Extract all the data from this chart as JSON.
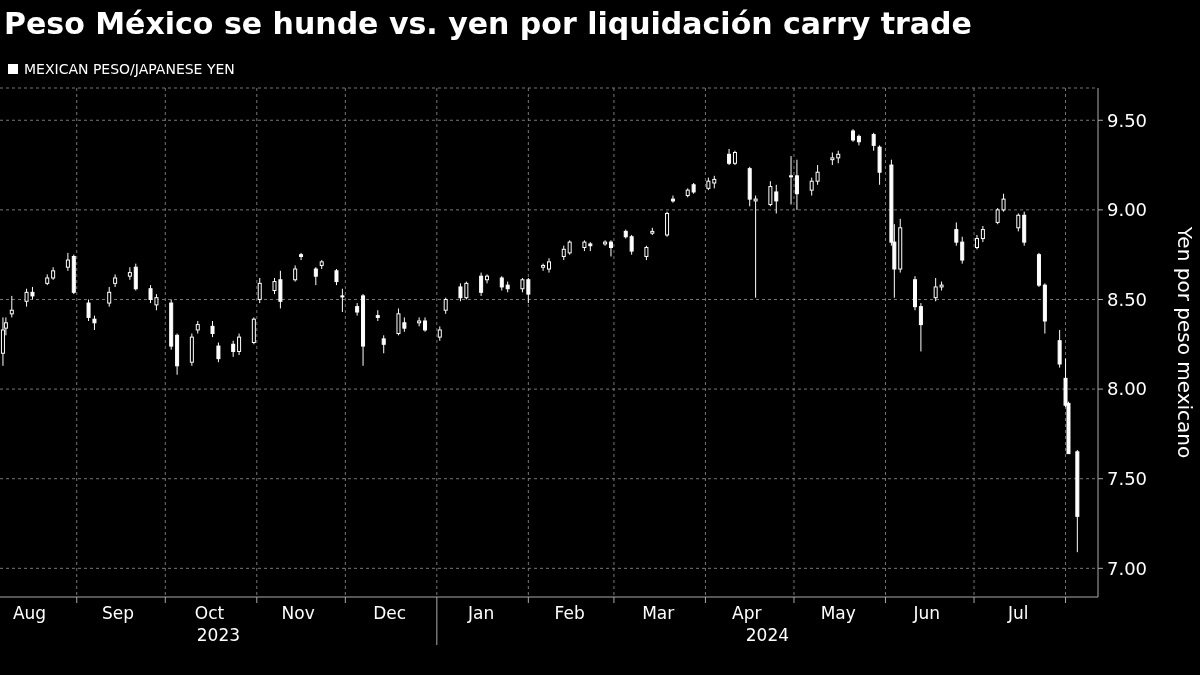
{
  "chart_data": {
    "type": "candlestick",
    "title": "Peso México se hunde vs. yen por liquidación carry trade",
    "ylabel": "Yen por peso mexicano",
    "legend": "top left",
    "grid": true,
    "xlim": [
      "2023-08-06",
      "2024-08-12"
    ],
    "xticks": [
      {
        "value": "2023-08-16",
        "label": "Aug"
      },
      {
        "value": "2023-09-01",
        "label": null
      },
      {
        "value": "2023-09-15",
        "label": "Sep"
      },
      {
        "value": "2023-10-01",
        "label": null
      },
      {
        "value": "2023-10-16",
        "label": "Oct"
      },
      {
        "value": "2023-11-01",
        "label": null
      },
      {
        "value": "2023-11-15",
        "label": "Nov"
      },
      {
        "value": "2023-12-01",
        "label": null
      },
      {
        "value": "2023-12-16",
        "label": "Dec"
      },
      {
        "value": "2024-01-01",
        "label": null
      },
      {
        "value": "2024-01-16",
        "label": "Jan"
      },
      {
        "value": "2024-02-01",
        "label": null
      },
      {
        "value": "2024-02-15",
        "label": "Feb"
      },
      {
        "value": "2024-03-01",
        "label": null
      },
      {
        "value": "2024-03-16",
        "label": "Mar"
      },
      {
        "value": "2024-04-01",
        "label": null
      },
      {
        "value": "2024-04-15",
        "label": "Apr"
      },
      {
        "value": "2024-05-01",
        "label": null
      },
      {
        "value": "2024-05-16",
        "label": "May"
      },
      {
        "value": "2024-06-01",
        "label": null
      },
      {
        "value": "2024-06-15",
        "label": "Jun"
      },
      {
        "value": "2024-07-01",
        "label": null
      },
      {
        "value": "2024-07-16",
        "label": "Jul"
      },
      {
        "value": "2024-08-01",
        "label": null
      }
    ],
    "annotations": [
      "2023",
      "2024"
    ],
    "ylim": [
      6.84,
      9.68
    ],
    "yticks": [
      {
        "value": 7,
        "label": "7.00"
      },
      {
        "value": 7.5,
        "label": "7.50"
      },
      {
        "value": 8,
        "label": "8.00"
      },
      {
        "value": 8.5,
        "label": "8.50"
      },
      {
        "value": 9,
        "label": "9.00"
      },
      {
        "value": 9.5,
        "label": "9.50"
      }
    ],
    "series": [
      {
        "name": "MEXICAN PESO/JAPANESE YEN",
        "color": "#ffffff",
        "x": [
          "2023-08-07",
          "2023-08-08",
          "2023-08-10",
          "2023-08-15",
          "2023-08-17",
          "2023-08-22",
          "2023-08-24",
          "2023-08-29",
          "2023-08-31",
          "2023-09-05",
          "2023-09-07",
          "2023-09-12",
          "2023-09-14",
          "2023-09-19",
          "2023-09-21",
          "2023-09-26",
          "2023-09-28",
          "2023-10-03",
          "2023-10-05",
          "2023-10-10",
          "2023-10-12",
          "2023-10-17",
          "2023-10-19",
          "2023-10-24",
          "2023-10-26",
          "2023-10-31",
          "2023-11-02",
          "2023-11-07",
          "2023-11-09",
          "2023-11-14",
          "2023-11-16",
          "2023-11-21",
          "2023-11-23",
          "2023-11-28",
          "2023-11-30",
          "2023-12-05",
          "2023-12-07",
          "2023-12-12",
          "2023-12-14",
          "2023-12-19",
          "2023-12-21",
          "2023-12-26",
          "2023-12-28",
          "2024-01-02",
          "2024-01-04",
          "2024-01-09",
          "2024-01-11",
          "2024-01-16",
          "2024-01-18",
          "2024-01-23",
          "2024-01-25",
          "2024-01-30",
          "2024-02-01",
          "2024-02-06",
          "2024-02-08",
          "2024-02-13",
          "2024-02-15",
          "2024-02-20",
          "2024-02-22",
          "2024-02-27",
          "2024-02-29",
          "2024-03-05",
          "2024-03-07",
          "2024-03-12",
          "2024-03-14",
          "2024-03-19",
          "2024-03-21",
          "2024-03-26",
          "2024-03-28",
          "2024-04-02",
          "2024-04-04",
          "2024-04-09",
          "2024-04-11",
          "2024-04-16",
          "2024-04-18",
          "2024-04-23",
          "2024-04-25",
          "2024-04-30",
          "2024-05-02",
          "2024-05-07",
          "2024-05-09",
          "2024-05-14",
          "2024-05-16",
          "2024-05-21",
          "2024-05-23",
          "2024-05-28",
          "2024-05-30",
          "2024-06-03",
          "2024-06-04",
          "2024-06-06",
          "2024-06-11",
          "2024-06-13",
          "2024-06-18",
          "2024-06-20",
          "2024-06-25",
          "2024-06-27",
          "2024-07-02",
          "2024-07-04",
          "2024-07-09",
          "2024-07-11",
          "2024-07-16",
          "2024-07-18",
          "2024-07-23",
          "2024-07-25",
          "2024-07-30",
          "2024-08-01",
          "2024-08-02",
          "2024-08-05"
        ],
        "ohlc": [
          [
            8.2,
            8.4,
            8.13,
            8.33
          ],
          [
            8.34,
            8.4,
            8.3,
            8.37
          ],
          [
            8.42,
            8.52,
            8.4,
            8.44
          ],
          [
            8.49,
            8.56,
            8.46,
            8.54
          ],
          [
            8.54,
            8.57,
            8.5,
            8.52
          ],
          [
            8.59,
            8.64,
            8.58,
            8.62
          ],
          [
            8.62,
            8.68,
            8.61,
            8.66
          ],
          [
            8.68,
            8.76,
            8.66,
            8.72
          ],
          [
            8.74,
            8.75,
            8.53,
            8.54
          ],
          [
            8.48,
            8.5,
            8.38,
            8.4
          ],
          [
            8.39,
            8.41,
            8.33,
            8.37
          ],
          [
            8.48,
            8.57,
            8.46,
            8.54
          ],
          [
            8.59,
            8.64,
            8.57,
            8.62
          ],
          [
            8.63,
            8.68,
            8.61,
            8.65
          ],
          [
            8.68,
            8.7,
            8.55,
            8.56
          ],
          [
            8.56,
            8.58,
            8.48,
            8.5
          ],
          [
            8.47,
            8.53,
            8.44,
            8.51
          ],
          [
            8.48,
            8.5,
            8.22,
            8.24
          ],
          [
            8.3,
            8.31,
            8.08,
            8.13
          ],
          [
            8.15,
            8.31,
            8.13,
            8.29
          ],
          [
            8.33,
            8.38,
            8.31,
            8.36
          ],
          [
            8.35,
            8.38,
            8.29,
            8.31
          ],
          [
            8.24,
            8.26,
            8.15,
            8.17
          ],
          [
            8.25,
            8.27,
            8.18,
            8.21
          ],
          [
            8.21,
            8.31,
            8.19,
            8.29
          ],
          [
            8.26,
            8.4,
            8.25,
            8.39
          ],
          [
            8.5,
            8.62,
            8.48,
            8.59
          ],
          [
            8.55,
            8.62,
            8.53,
            8.6
          ],
          [
            8.61,
            8.66,
            8.45,
            8.49
          ],
          [
            8.61,
            8.69,
            8.6,
            8.67
          ],
          [
            8.75,
            8.76,
            8.72,
            8.74
          ],
          [
            8.67,
            8.68,
            8.58,
            8.63
          ],
          [
            8.69,
            8.72,
            8.67,
            8.71
          ],
          [
            8.66,
            8.67,
            8.58,
            8.6
          ],
          [
            8.52,
            8.56,
            8.43,
            8.52
          ],
          [
            8.46,
            8.48,
            8.41,
            8.43
          ],
          [
            8.52,
            8.53,
            8.13,
            8.24
          ],
          [
            8.41,
            8.44,
            8.38,
            8.4
          ],
          [
            8.28,
            8.3,
            8.2,
            8.25
          ],
          [
            8.31,
            8.45,
            8.3,
            8.42
          ],
          [
            8.37,
            8.4,
            8.32,
            8.34
          ],
          [
            8.37,
            8.4,
            8.35,
            8.38
          ],
          [
            8.38,
            8.4,
            8.32,
            8.33
          ],
          [
            8.29,
            8.35,
            8.27,
            8.33
          ],
          [
            8.44,
            8.51,
            8.42,
            8.5
          ],
          [
            8.57,
            8.59,
            8.49,
            8.51
          ],
          [
            8.51,
            8.6,
            8.5,
            8.59
          ],
          [
            8.63,
            8.65,
            8.52,
            8.54
          ],
          [
            8.61,
            8.64,
            8.59,
            8.63
          ],
          [
            8.62,
            8.63,
            8.55,
            8.57
          ],
          [
            8.58,
            8.6,
            8.54,
            8.56
          ],
          [
            8.56,
            8.62,
            8.54,
            8.61
          ],
          [
            8.61,
            8.62,
            8.48,
            8.53
          ],
          [
            8.68,
            8.7,
            8.66,
            8.69
          ],
          [
            8.67,
            8.73,
            8.65,
            8.71
          ],
          [
            8.74,
            8.8,
            8.72,
            8.78
          ],
          [
            8.76,
            8.83,
            8.75,
            8.82
          ],
          [
            8.79,
            8.83,
            8.77,
            8.82
          ],
          [
            8.81,
            8.82,
            8.77,
            8.8
          ],
          [
            8.81,
            8.83,
            8.8,
            8.82
          ],
          [
            8.82,
            8.83,
            8.74,
            8.79
          ],
          [
            8.88,
            8.89,
            8.84,
            8.85
          ],
          [
            8.85,
            8.86,
            8.75,
            8.77
          ],
          [
            8.74,
            8.8,
            8.72,
            8.79
          ],
          [
            8.87,
            8.9,
            8.86,
            8.88
          ],
          [
            8.86,
            8.99,
            8.85,
            8.98
          ],
          [
            9.06,
            9.08,
            9.04,
            9.05
          ],
          [
            9.08,
            9.12,
            9.07,
            9.11
          ],
          [
            9.14,
            9.15,
            9.09,
            9.1
          ],
          [
            9.12,
            9.18,
            9.11,
            9.16
          ],
          [
            9.15,
            9.19,
            9.12,
            9.17
          ],
          [
            9.31,
            9.34,
            9.25,
            9.26
          ],
          [
            9.26,
            9.33,
            9.25,
            9.32
          ],
          [
            9.23,
            9.24,
            9.02,
            9.06
          ],
          [
            9.05,
            9.08,
            8.51,
            9.06
          ],
          [
            9.03,
            9.16,
            9.02,
            9.13
          ],
          [
            9.1,
            9.14,
            8.98,
            9.05
          ],
          [
            9.19,
            9.3,
            9.03,
            9.19
          ],
          [
            9.19,
            9.28,
            9.0,
            9.09
          ],
          [
            9.11,
            9.18,
            9.08,
            9.16
          ],
          [
            9.16,
            9.25,
            9.14,
            9.21
          ],
          [
            9.28,
            9.32,
            9.25,
            9.29
          ],
          [
            9.29,
            9.33,
            9.26,
            9.31
          ],
          [
            9.44,
            9.45,
            9.38,
            9.39
          ],
          [
            9.41,
            9.42,
            9.36,
            9.38
          ],
          [
            9.42,
            9.43,
            9.33,
            9.36
          ],
          [
            9.35,
            9.36,
            9.14,
            9.21
          ],
          [
            9.25,
            9.28,
            8.8,
            8.82
          ],
          [
            8.82,
            8.92,
            8.51,
            8.67
          ],
          [
            8.67,
            8.95,
            8.65,
            8.9
          ],
          [
            8.61,
            8.63,
            8.44,
            8.46
          ],
          [
            8.46,
            8.48,
            8.21,
            8.36
          ],
          [
            8.51,
            8.62,
            8.49,
            8.57
          ],
          [
            8.57,
            8.6,
            8.55,
            8.58
          ],
          [
            8.89,
            8.93,
            8.8,
            8.82
          ],
          [
            8.82,
            8.85,
            8.7,
            8.72
          ],
          [
            8.79,
            8.86,
            8.78,
            8.84
          ],
          [
            8.84,
            8.91,
            8.82,
            8.89
          ],
          [
            8.93,
            9.01,
            8.92,
            9.0
          ],
          [
            9.0,
            9.09,
            8.99,
            9.06
          ],
          [
            8.9,
            8.98,
            8.88,
            8.97
          ],
          [
            8.97,
            8.99,
            8.8,
            8.82
          ],
          [
            8.75,
            8.76,
            8.57,
            8.58
          ],
          [
            8.58,
            8.59,
            8.31,
            8.38
          ],
          [
            8.27,
            8.33,
            8.12,
            8.14
          ],
          [
            8.06,
            8.17,
            7.9,
            7.91
          ],
          [
            7.92,
            7.93,
            7.64,
            7.64
          ],
          [
            7.65,
            7.66,
            7.09,
            7.29
          ]
        ]
      }
    ]
  }
}
